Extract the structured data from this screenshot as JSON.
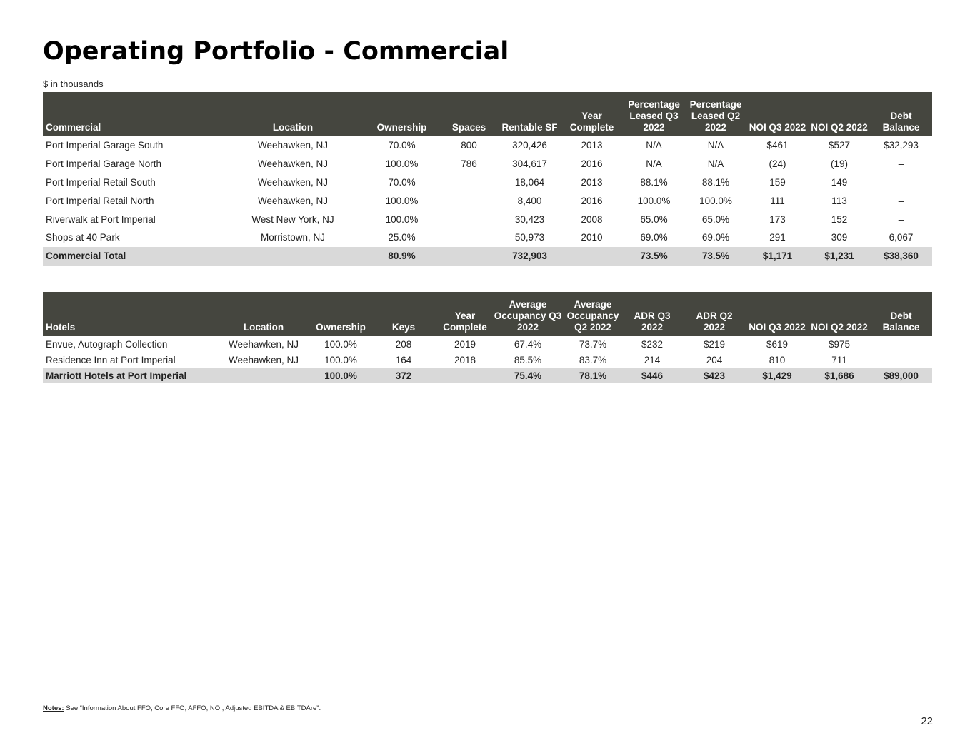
{
  "title": "Operating Portfolio - Commercial",
  "subtitle": "$ in thousands",
  "commercial": {
    "headers": [
      "Commercial",
      "Location",
      "Ownership",
      "Spaces",
      "Rentable SF",
      "Year Complete",
      "Percentage Leased Q3 2022",
      "Percentage Leased Q2 2022",
      "NOI Q3 2022",
      "NOI Q2 2022",
      "Debt Balance"
    ],
    "rows": [
      [
        "Port Imperial Garage South",
        "Weehawken, NJ",
        "70.0%",
        "800",
        "320,426",
        "2013",
        "N/A",
        "N/A",
        "$461",
        "$527",
        "$32,293"
      ],
      [
        "Port Imperial Garage North",
        "Weehawken, NJ",
        "100.0%",
        "786",
        "304,617",
        "2016",
        "N/A",
        "N/A",
        "(24)",
        "(19)",
        "–"
      ],
      [
        "Port Imperial Retail South",
        "Weehawken, NJ",
        "70.0%",
        "",
        "18,064",
        "2013",
        "88.1%",
        "88.1%",
        "159",
        "149",
        "–"
      ],
      [
        "Port Imperial Retail North",
        "Weehawken, NJ",
        "100.0%",
        "",
        "8,400",
        "2016",
        "100.0%",
        "100.0%",
        "111",
        "113",
        "–"
      ],
      [
        "Riverwalk at Port Imperial",
        "West New York, NJ",
        "100.0%",
        "",
        "30,423",
        "2008",
        "65.0%",
        "65.0%",
        "173",
        "152",
        "–"
      ],
      [
        "Shops at 40 Park",
        "Morristown, NJ",
        "25.0%",
        "",
        "50,973",
        "2010",
        "69.0%",
        "69.0%",
        "291",
        "309",
        "6,067"
      ]
    ],
    "total": [
      "Commercial Total",
      "",
      "80.9%",
      "",
      "732,903",
      "",
      "73.5%",
      "73.5%",
      "$1,171",
      "$1,231",
      "$38,360"
    ]
  },
  "hotels": {
    "headers": [
      "Hotels",
      "Location",
      "Ownership",
      "Keys",
      "Year Complete",
      "Average Occupancy Q3 2022",
      "Average Occupancy Q2 2022",
      "ADR Q3 2022",
      "ADR Q2 2022",
      "NOI Q3 2022",
      "NOI Q2 2022",
      "Debt Balance"
    ],
    "rows": [
      [
        "Envue, Autograph Collection",
        "Weehawken, NJ",
        "100.0%",
        "208",
        "2019",
        "67.4%",
        "73.7%",
        "$232",
        "$219",
        "$619",
        "$975",
        ""
      ],
      [
        "Residence Inn at Port Imperial",
        "Weehawken, NJ",
        "100.0%",
        "164",
        "2018",
        "85.5%",
        "83.7%",
        "214",
        "204",
        "810",
        "711",
        ""
      ]
    ],
    "total": [
      "Marriott Hotels at Port Imperial",
      "",
      "100.0%",
      "372",
      "",
      "75.4%",
      "78.1%",
      "$446",
      "$423",
      "$1,429",
      "$1,686",
      "$89,000"
    ]
  },
  "notes": {
    "label": "Notes:",
    "text": " See “Information About FFO, Core FFO, AFFO, NOI, Adjusted EBITDA & EBITDAre”."
  },
  "page_number": "22"
}
